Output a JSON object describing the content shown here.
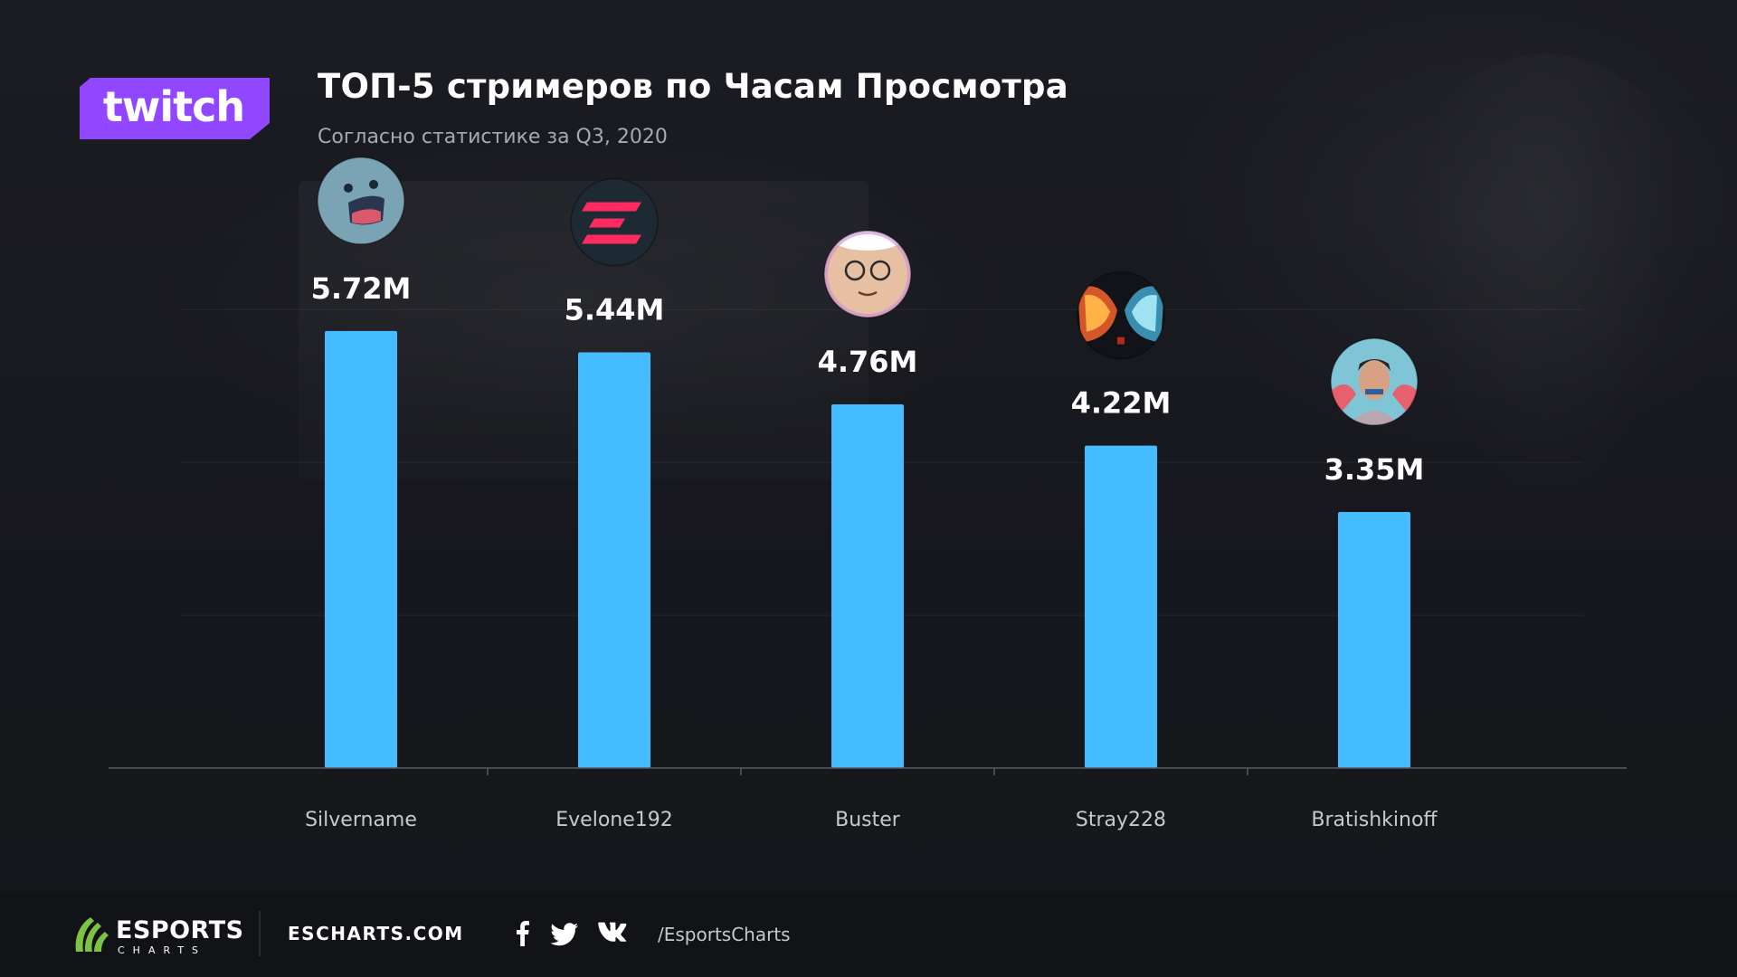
{
  "header": {
    "logo_text": "twitch",
    "title": "ТОП-5 стримеров по Часам Просмотра",
    "subtitle": "Согласно статистике за Q3, 2020"
  },
  "chart_data": {
    "type": "bar",
    "categories": [
      "Silvername",
      "Evelone192",
      "Buster",
      "Stray228",
      "Bratishkinoff"
    ],
    "values": [
      5.72,
      5.44,
      4.76,
      4.22,
      3.35
    ],
    "value_labels": [
      "5.72M",
      "5.44M",
      "4.76M",
      "4.22M",
      "3.35M"
    ],
    "unit": "M",
    "bar_color": "#45bcff",
    "ylim": [
      0,
      6.5
    ],
    "grid": true,
    "avatars": [
      {
        "name": "Silvername",
        "icon": "shocked-face-avatar-icon"
      },
      {
        "name": "Evelone192",
        "icon": "red-e-logo-avatar-icon"
      },
      {
        "name": "Buster",
        "icon": "cartoon-face-avatar-icon"
      },
      {
        "name": "Stray228",
        "icon": "dota2-heroes-avatar-icon"
      },
      {
        "name": "Bratishkinoff",
        "icon": "portrait-avatar-icon"
      }
    ]
  },
  "footer": {
    "brand_top": "ESPORTS",
    "brand_bottom": "CHARTS",
    "site": "ESCHARTS.COM",
    "social_icons": [
      "facebook-icon",
      "twitter-icon",
      "vk-icon"
    ],
    "handle": "/EsportsCharts"
  },
  "colors": {
    "background": "#191a20",
    "bar": "#45bcff",
    "twitch_purple": "#9146ff",
    "esports_green": "#7ec243"
  }
}
